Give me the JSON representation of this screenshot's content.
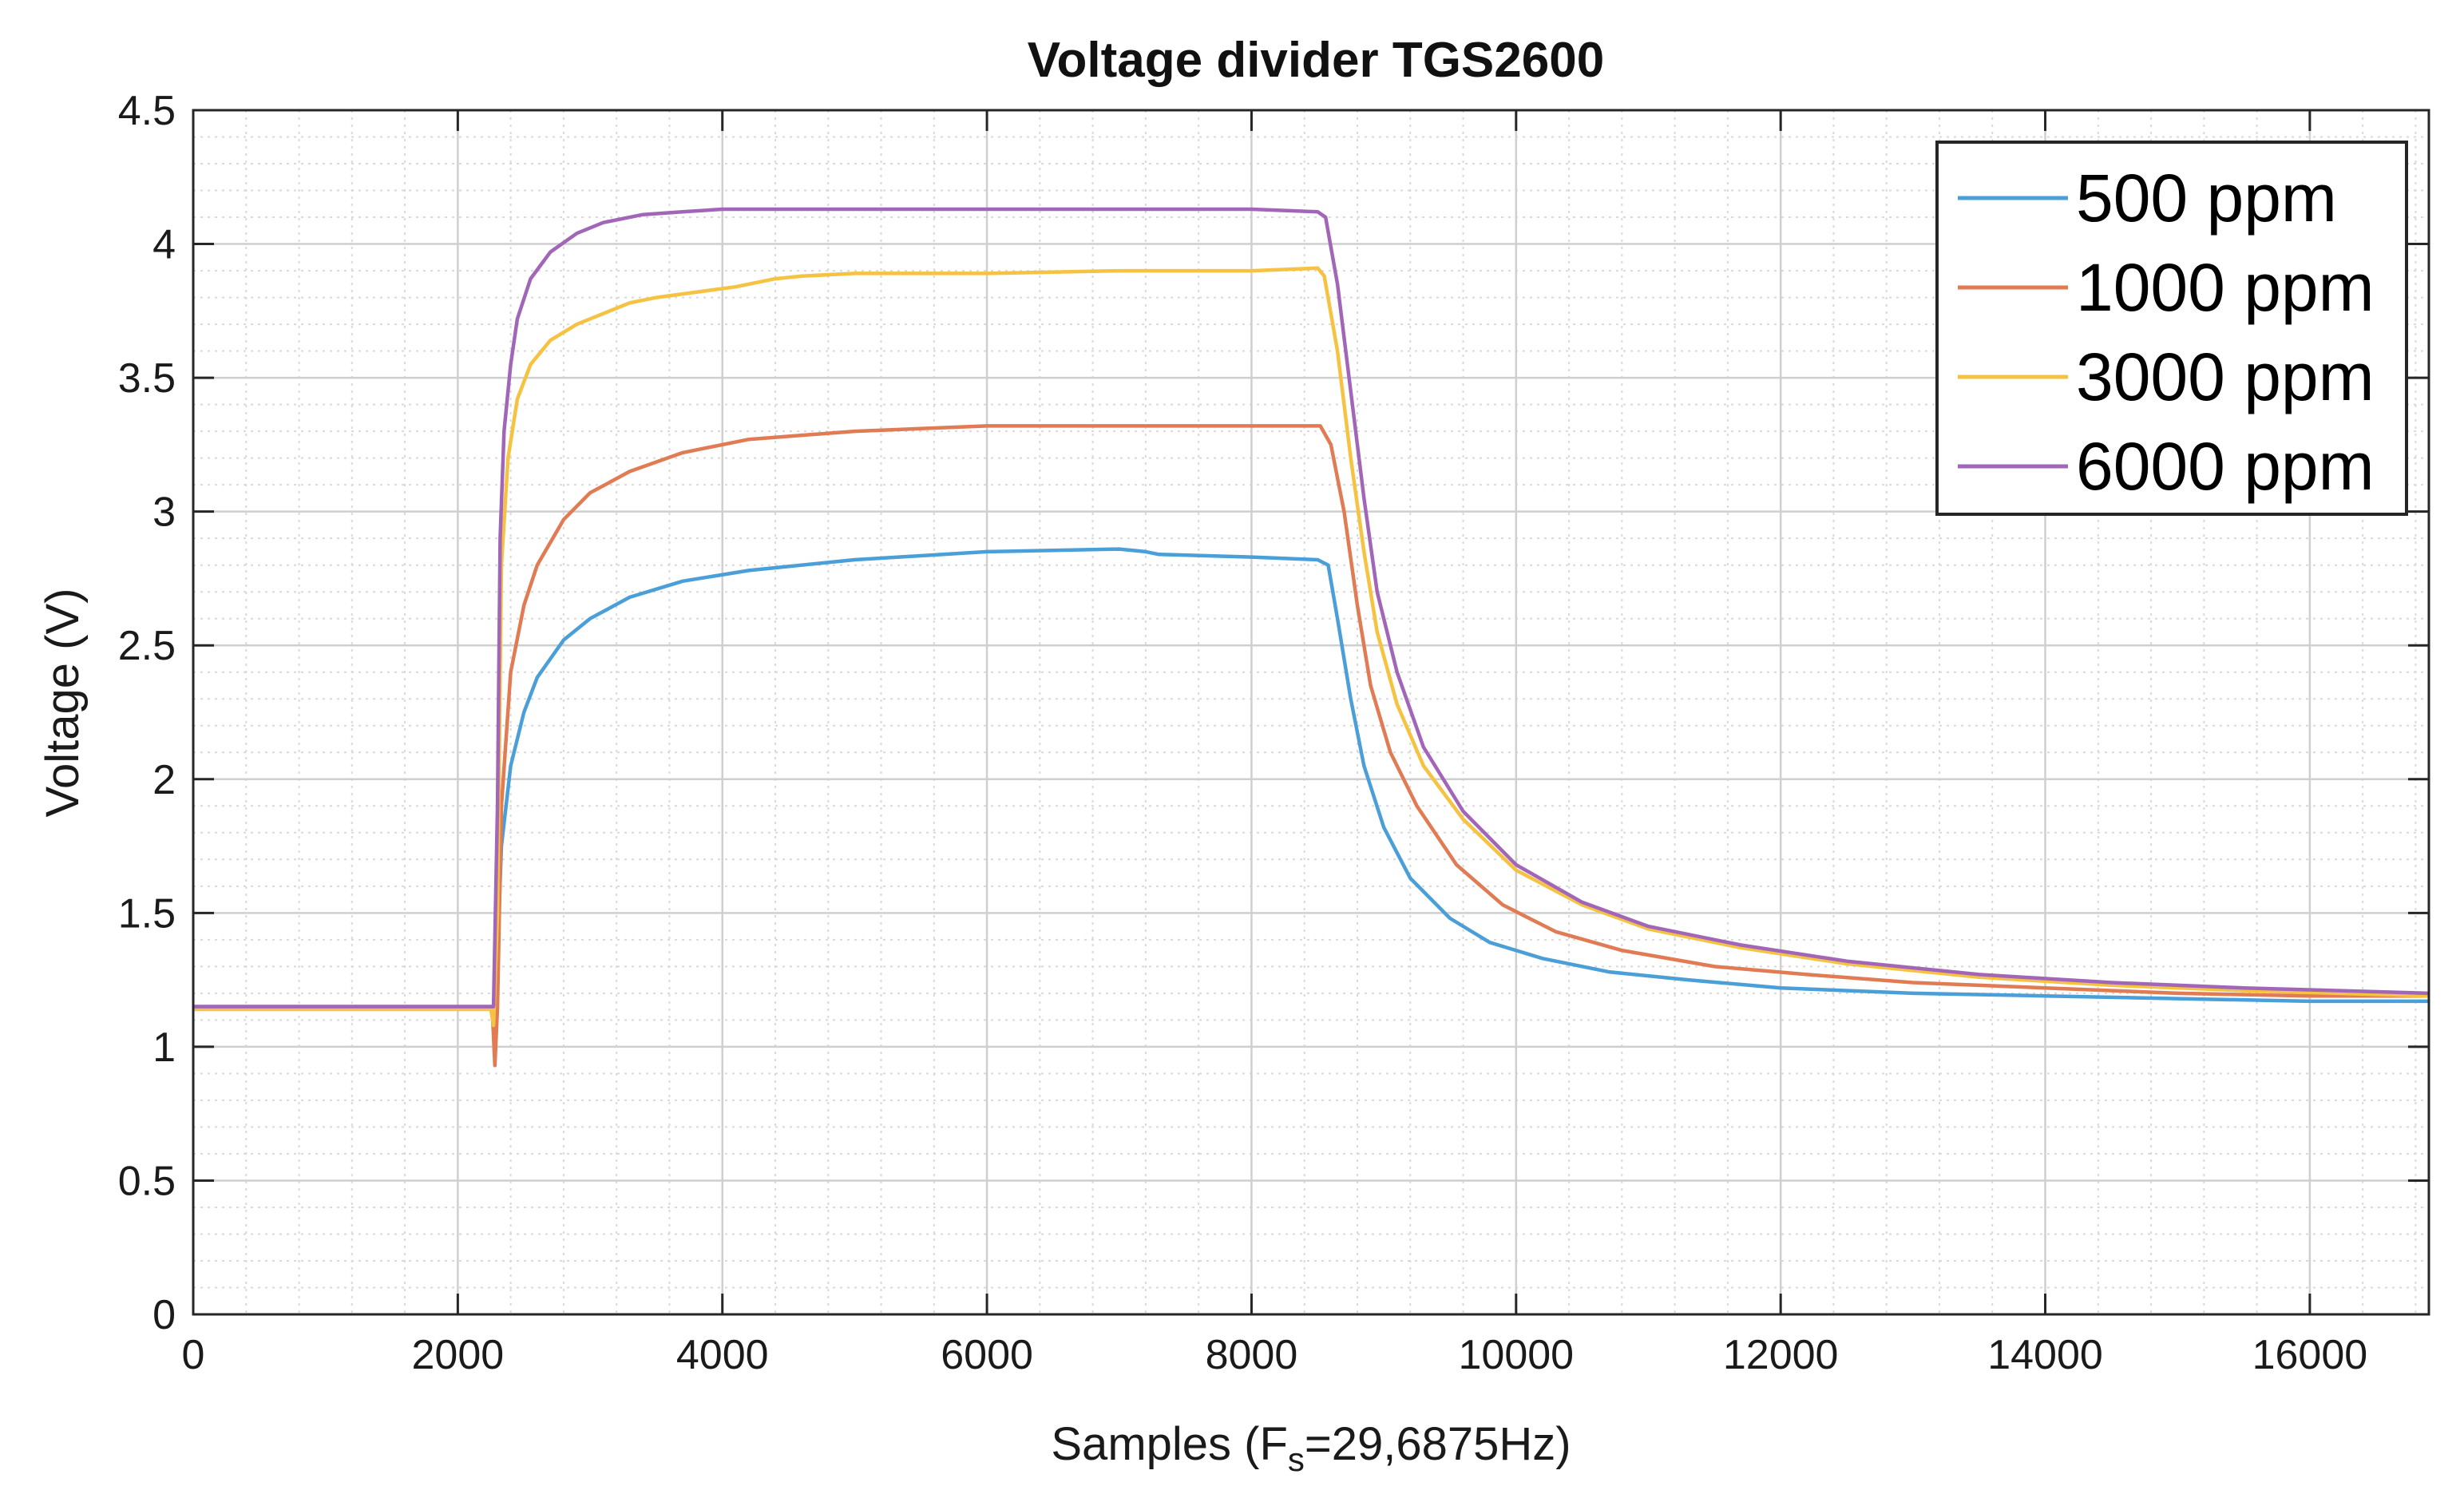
{
  "chart_data": {
    "type": "line",
    "title": "Voltage divider TGS2600",
    "xlabel": {
      "prefix": "Samples (F",
      "subscript": "s",
      "suffix": "=29,6875Hz)"
    },
    "ylabel": "Voltage (V)",
    "xlim": [
      0,
      16900
    ],
    "ylim": [
      0,
      4.5
    ],
    "xticks": [
      0,
      2000,
      4000,
      6000,
      8000,
      10000,
      12000,
      14000,
      16000
    ],
    "xtick_labels": [
      "0",
      "2000",
      "4000",
      "6000",
      "8000",
      "10000",
      "12000",
      "14000",
      "16000"
    ],
    "yticks": [
      0,
      0.5,
      1,
      1.5,
      2,
      2.5,
      3,
      3.5,
      4,
      4.5
    ],
    "ytick_labels": [
      "0",
      "0.5",
      "1",
      "1.5",
      "2",
      "2.5",
      "3",
      "3.5",
      "4",
      "4.5"
    ],
    "grid": true,
    "minor_grid": true,
    "legend_position": "top-right",
    "series": [
      {
        "name": "500 ppm",
        "color": "#4a9fd8",
        "x": [
          0,
          2270,
          2300,
          2330,
          2400,
          2500,
          2600,
          2800,
          3000,
          3300,
          3700,
          4200,
          5000,
          6000,
          7000,
          7200,
          7300,
          8000,
          8500,
          8580,
          8650,
          8750,
          8850,
          9000,
          9200,
          9500,
          9800,
          10200,
          10700,
          11300,
          12000,
          13000,
          14000,
          15000,
          16000,
          16900
        ],
        "y": [
          1.15,
          1.15,
          1.35,
          1.75,
          2.05,
          2.25,
          2.38,
          2.52,
          2.6,
          2.68,
          2.74,
          2.78,
          2.82,
          2.85,
          2.86,
          2.85,
          2.84,
          2.83,
          2.82,
          2.8,
          2.6,
          2.3,
          2.05,
          1.82,
          1.63,
          1.48,
          1.39,
          1.33,
          1.28,
          1.25,
          1.22,
          1.2,
          1.19,
          1.18,
          1.17,
          1.17
        ]
      },
      {
        "name": "1000 ppm",
        "color": "#e07b54",
        "x": [
          0,
          2260,
          2280,
          2300,
          2330,
          2400,
          2500,
          2600,
          2800,
          3000,
          3300,
          3700,
          4200,
          5000,
          6000,
          7000,
          8000,
          8520,
          8600,
          8700,
          8800,
          8900,
          9050,
          9250,
          9550,
          9900,
          10300,
          10800,
          11500,
          12200,
          13000,
          14000,
          15000,
          16000,
          16900
        ],
        "y": [
          1.15,
          1.15,
          0.93,
          1.15,
          1.9,
          2.4,
          2.65,
          2.8,
          2.97,
          3.07,
          3.15,
          3.22,
          3.27,
          3.3,
          3.32,
          3.32,
          3.32,
          3.32,
          3.25,
          3.0,
          2.65,
          2.35,
          2.1,
          1.9,
          1.68,
          1.53,
          1.43,
          1.36,
          1.3,
          1.27,
          1.24,
          1.22,
          1.2,
          1.19,
          1.19
        ]
      },
      {
        "name": "3000 ppm",
        "color": "#f5c242",
        "x": [
          0,
          2250,
          2270,
          2300,
          2330,
          2380,
          2450,
          2550,
          2700,
          2900,
          3100,
          3300,
          3500,
          3800,
          4100,
          4400,
          4600,
          5000,
          6000,
          7000,
          8000,
          8500,
          8550,
          8650,
          8750,
          8850,
          8950,
          9100,
          9300,
          9600,
          10000,
          10500,
          11000,
          11700,
          12500,
          13500,
          14500,
          15500,
          16900
        ],
        "y": [
          1.14,
          1.14,
          1.08,
          1.5,
          2.8,
          3.2,
          3.42,
          3.55,
          3.64,
          3.7,
          3.74,
          3.78,
          3.8,
          3.82,
          3.84,
          3.87,
          3.88,
          3.89,
          3.89,
          3.9,
          3.9,
          3.91,
          3.88,
          3.6,
          3.2,
          2.85,
          2.55,
          2.28,
          2.05,
          1.85,
          1.66,
          1.53,
          1.44,
          1.37,
          1.31,
          1.26,
          1.23,
          1.21,
          1.19
        ]
      },
      {
        "name": "6000 ppm",
        "color": "#a266b8",
        "x": [
          0,
          2270,
          2300,
          2320,
          2350,
          2400,
          2450,
          2550,
          2700,
          2900,
          3100,
          3400,
          3700,
          4000,
          5000,
          6000,
          7000,
          8000,
          8500,
          8560,
          8650,
          8750,
          8850,
          8950,
          9100,
          9300,
          9600,
          10000,
          10500,
          11000,
          11700,
          12500,
          13500,
          14500,
          15500,
          16900
        ],
        "y": [
          1.15,
          1.15,
          1.9,
          2.9,
          3.3,
          3.55,
          3.72,
          3.87,
          3.97,
          4.04,
          4.08,
          4.11,
          4.12,
          4.13,
          4.13,
          4.13,
          4.13,
          4.13,
          4.12,
          4.1,
          3.85,
          3.45,
          3.05,
          2.7,
          2.4,
          2.12,
          1.88,
          1.68,
          1.54,
          1.45,
          1.38,
          1.32,
          1.27,
          1.24,
          1.22,
          1.2
        ]
      }
    ]
  }
}
